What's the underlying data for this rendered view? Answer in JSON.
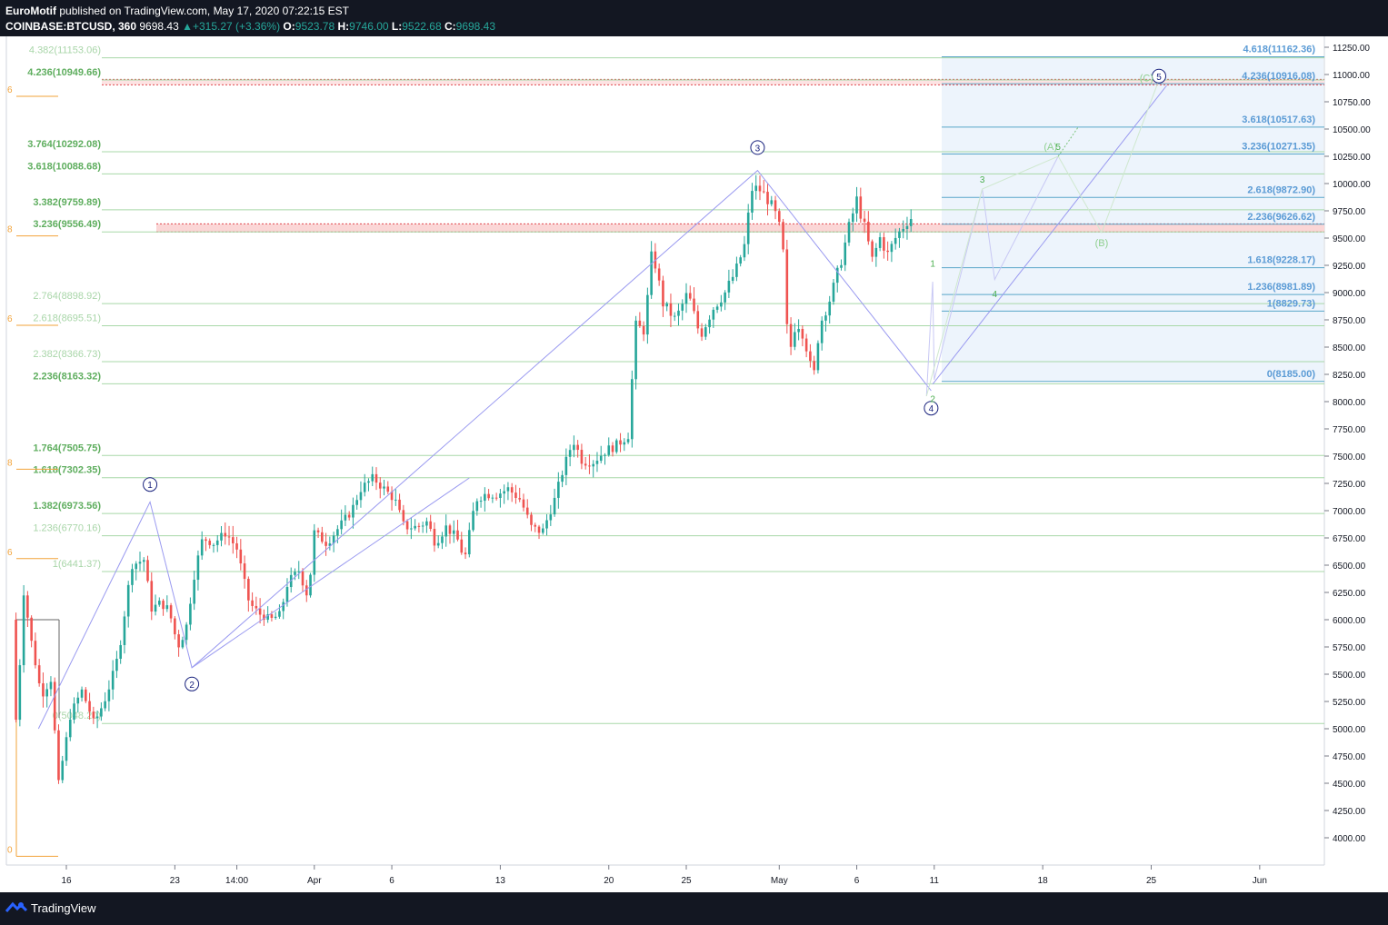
{
  "header": {
    "author": "EuroMotif",
    "published_text": "published on TradingView.com, May 17, 2020 07:22:15 EST",
    "symbol": "COINBASE:BTCUSD, 360",
    "last": "9698.43",
    "change": "+315.27 (+3.36%)",
    "open_label": "O:",
    "open": "9523.78",
    "high_label": "H:",
    "high": "9746.00",
    "low_label": "L:",
    "low": "9522.68",
    "close_label": "C:",
    "close": "9698.43"
  },
  "footer": {
    "brand": "TradingView",
    "icon": "tradingview-logo-icon"
  },
  "colors": {
    "up": "#26a69a",
    "down": "#ef5350",
    "background_bars": "#131722",
    "fib_left": "#7cc47c",
    "fib_right": "#4a90d9",
    "wave": "#9a9af0",
    "orange": "#f2a33a"
  },
  "chart_data": {
    "type": "candlestick",
    "symbol": "COINBASE:BTCUSD",
    "interval": "360",
    "y_axis": {
      "ticks": [
        "11250.00",
        "11000.00",
        "10750.00",
        "10500.00",
        "10250.00",
        "10000.00",
        "9750.00",
        "9500.00",
        "9250.00",
        "9000.00",
        "8750.00",
        "8500.00",
        "8250.00",
        "8000.00",
        "7750.00",
        "7500.00",
        "7250.00",
        "7000.00",
        "6750.00",
        "6500.00",
        "6250.00",
        "6000.00",
        "5750.00",
        "5500.00",
        "5250.00",
        "5000.00",
        "4750.00",
        "4500.00",
        "4250.00",
        "4000.00"
      ],
      "range": [
        3750,
        11350
      ]
    },
    "x_axis": {
      "ticks": [
        "16",
        "23",
        "14:00",
        "Apr",
        "6",
        "13",
        "20",
        "25",
        "May",
        "6",
        "11",
        "18",
        "25",
        "Jun"
      ],
      "tick_days": [
        0,
        7,
        11,
        16,
        21,
        28,
        35,
        40,
        46,
        51,
        56,
        63,
        70,
        77
      ]
    },
    "price_path": [
      [
        -3.5,
        6000
      ],
      [
        -3.2,
        4900
      ],
      [
        -2.8,
        6300
      ],
      [
        -2.2,
        5750
      ],
      [
        -1.6,
        5300
      ],
      [
        -1,
        5450
      ],
      [
        -0.5,
        4500
      ],
      [
        0.3,
        5150
      ],
      [
        1,
        5350
      ],
      [
        1.8,
        5050
      ],
      [
        2.6,
        5300
      ],
      [
        3.4,
        5700
      ],
      [
        4.2,
        6500
      ],
      [
        5,
        6550
      ],
      [
        5.5,
        6100
      ],
      [
        6,
        6150
      ],
      [
        6.6,
        6100
      ],
      [
        7.2,
        5750
      ],
      [
        7.7,
        5900
      ],
      [
        8.3,
        6450
      ],
      [
        8.8,
        6750
      ],
      [
        9.5,
        6700
      ],
      [
        10.3,
        6800
      ],
      [
        11,
        6650
      ],
      [
        11.8,
        6150
      ],
      [
        12.5,
        6050
      ],
      [
        13.2,
        6000
      ],
      [
        13.8,
        6050
      ],
      [
        14.3,
        6350
      ],
      [
        15,
        6450
      ],
      [
        15.6,
        6200
      ],
      [
        16,
        6800
      ],
      [
        16.8,
        6700
      ],
      [
        17.6,
        6850
      ],
      [
        18.4,
        7000
      ],
      [
        19,
        7200
      ],
      [
        19.8,
        7300
      ],
      [
        20.5,
        7200
      ],
      [
        21.2,
        7100
      ],
      [
        21.8,
        6850
      ],
      [
        22.6,
        6850
      ],
      [
        23.3,
        6900
      ],
      [
        23.8,
        6700
      ],
      [
        24.5,
        6850
      ],
      [
        25.2,
        6750
      ],
      [
        25.7,
        6550
      ],
      [
        26.4,
        7100
      ],
      [
        27,
        7150
      ],
      [
        27.8,
        7150
      ],
      [
        28.5,
        7200
      ],
      [
        29.3,
        7100
      ],
      [
        30,
        6850
      ],
      [
        30.7,
        6800
      ],
      [
        31.5,
        7100
      ],
      [
        32,
        7350
      ],
      [
        32.7,
        7650
      ],
      [
        33.3,
        7450
      ],
      [
        34,
        7450
      ],
      [
        34.8,
        7550
      ],
      [
        35.5,
        7600
      ],
      [
        36.3,
        7700
      ],
      [
        36.7,
        8700
      ],
      [
        37.3,
        8650
      ],
      [
        37.8,
        9400
      ],
      [
        38.5,
        8900
      ],
      [
        39.3,
        8750
      ],
      [
        40.1,
        9000
      ],
      [
        40.9,
        8600
      ],
      [
        41.7,
        8850
      ],
      [
        42.5,
        9000
      ],
      [
        43.2,
        9200
      ],
      [
        43.8,
        9450
      ],
      [
        44.2,
        9950
      ],
      [
        44.7,
        9950
      ],
      [
        45.3,
        9850
      ],
      [
        45.8,
        9700
      ],
      [
        46.2,
        9500
      ],
      [
        46.6,
        8400
      ],
      [
        47.1,
        8750
      ],
      [
        47.6,
        8600
      ],
      [
        48.2,
        8200
      ],
      [
        48.6,
        8700
      ],
      [
        49.3,
        8950
      ],
      [
        50,
        9300
      ],
      [
        50.5,
        9600
      ],
      [
        51,
        9850
      ],
      [
        51.5,
        9600
      ],
      [
        52,
        9300
      ],
      [
        52.5,
        9500
      ],
      [
        53,
        9350
      ],
      [
        53.5,
        9500
      ],
      [
        54.2,
        9650
      ],
      [
        54.6,
        9698
      ]
    ],
    "fib_left": [
      {
        "label": "4.382(11153.06)",
        "value": 11153.06
      },
      {
        "label": "4.236(10949.66)",
        "value": 10949.66
      },
      {
        "label": "3.764(10292.08)",
        "value": 10292.08
      },
      {
        "label": "3.618(10088.68)",
        "value": 10088.68
      },
      {
        "label": "3.382(9759.89)",
        "value": 9759.89
      },
      {
        "label": "3.236(9556.49)",
        "value": 9556.49
      },
      {
        "label": "2.764(8898.92)",
        "value": 8898.92
      },
      {
        "label": "2.618(8695.51)",
        "value": 8695.51
      },
      {
        "label": "2.382(8366.73)",
        "value": 8366.73
      },
      {
        "label": "2.236(8163.32)",
        "value": 8163.32
      },
      {
        "label": "1.764(7505.75)",
        "value": 7505.75
      },
      {
        "label": "1.618(7302.35)",
        "value": 7302.35
      },
      {
        "label": "1.382(6973.56)",
        "value": 6973.56
      },
      {
        "label": "1.236(6770.16)",
        "value": 6770.16
      },
      {
        "label": "1(6441.37)",
        "value": 6441.37
      },
      {
        "label": "0(5048.20)",
        "value": 5048.2
      }
    ],
    "fib_right": [
      {
        "label": "4.618(11162.36)",
        "value": 11162.36
      },
      {
        "label": "4.236(10916.08)",
        "value": 10916.08
      },
      {
        "label": "3.618(10517.63)",
        "value": 10517.63
      },
      {
        "label": "3.236(10271.35)",
        "value": 10271.35
      },
      {
        "label": "2.618(9872.90)",
        "value": 9872.9
      },
      {
        "label": "2.236(9626.62)",
        "value": 9626.62
      },
      {
        "label": "1.618(9228.17)",
        "value": 9228.17
      },
      {
        "label": "1.236(8981.89)",
        "value": 8981.89
      },
      {
        "label": "1(8829.73)",
        "value": 8829.73
      },
      {
        "label": "0(8185.00)",
        "value": 8185
      }
    ],
    "orange_markers": [
      {
        "label": "6",
        "value": 10800
      },
      {
        "label": "8",
        "value": 9520
      },
      {
        "label": "6",
        "value": 8700
      },
      {
        "label": "8",
        "value": 7380
      },
      {
        "label": "6",
        "value": 6560
      },
      {
        "label": "0",
        "value": 3830
      }
    ],
    "elliott_waves": [
      {
        "label": "1",
        "day": 5.4,
        "value": 7240,
        "style": "circle"
      },
      {
        "label": "2",
        "day": 8.1,
        "value": 5410,
        "style": "circle"
      },
      {
        "label": "3",
        "day": 44.6,
        "value": 10330,
        "style": "circle"
      },
      {
        "label": "4",
        "day": 55.8,
        "value": 7940,
        "style": "circle"
      },
      {
        "label": "5",
        "day": 70.5,
        "value": 10985,
        "style": "circle"
      },
      {
        "label": "1",
        "day": 55.9,
        "value": 9270,
        "style": "plain"
      },
      {
        "label": "2",
        "day": 55.9,
        "value": 8030,
        "style": "plain"
      },
      {
        "label": "3",
        "day": 59.1,
        "value": 10040,
        "style": "plain"
      },
      {
        "label": "4",
        "day": 59.9,
        "value": 8990,
        "style": "plain"
      },
      {
        "label": "5",
        "day": 64.0,
        "value": 10340,
        "style": "plain"
      },
      {
        "label": "(A)",
        "day": 63.5,
        "value": 10340,
        "style": "paren"
      },
      {
        "label": "(B)",
        "day": 66.8,
        "value": 9460,
        "style": "paren"
      },
      {
        "label": "(C)",
        "day": 69.7,
        "value": 10970,
        "style": "paren"
      }
    ]
  }
}
